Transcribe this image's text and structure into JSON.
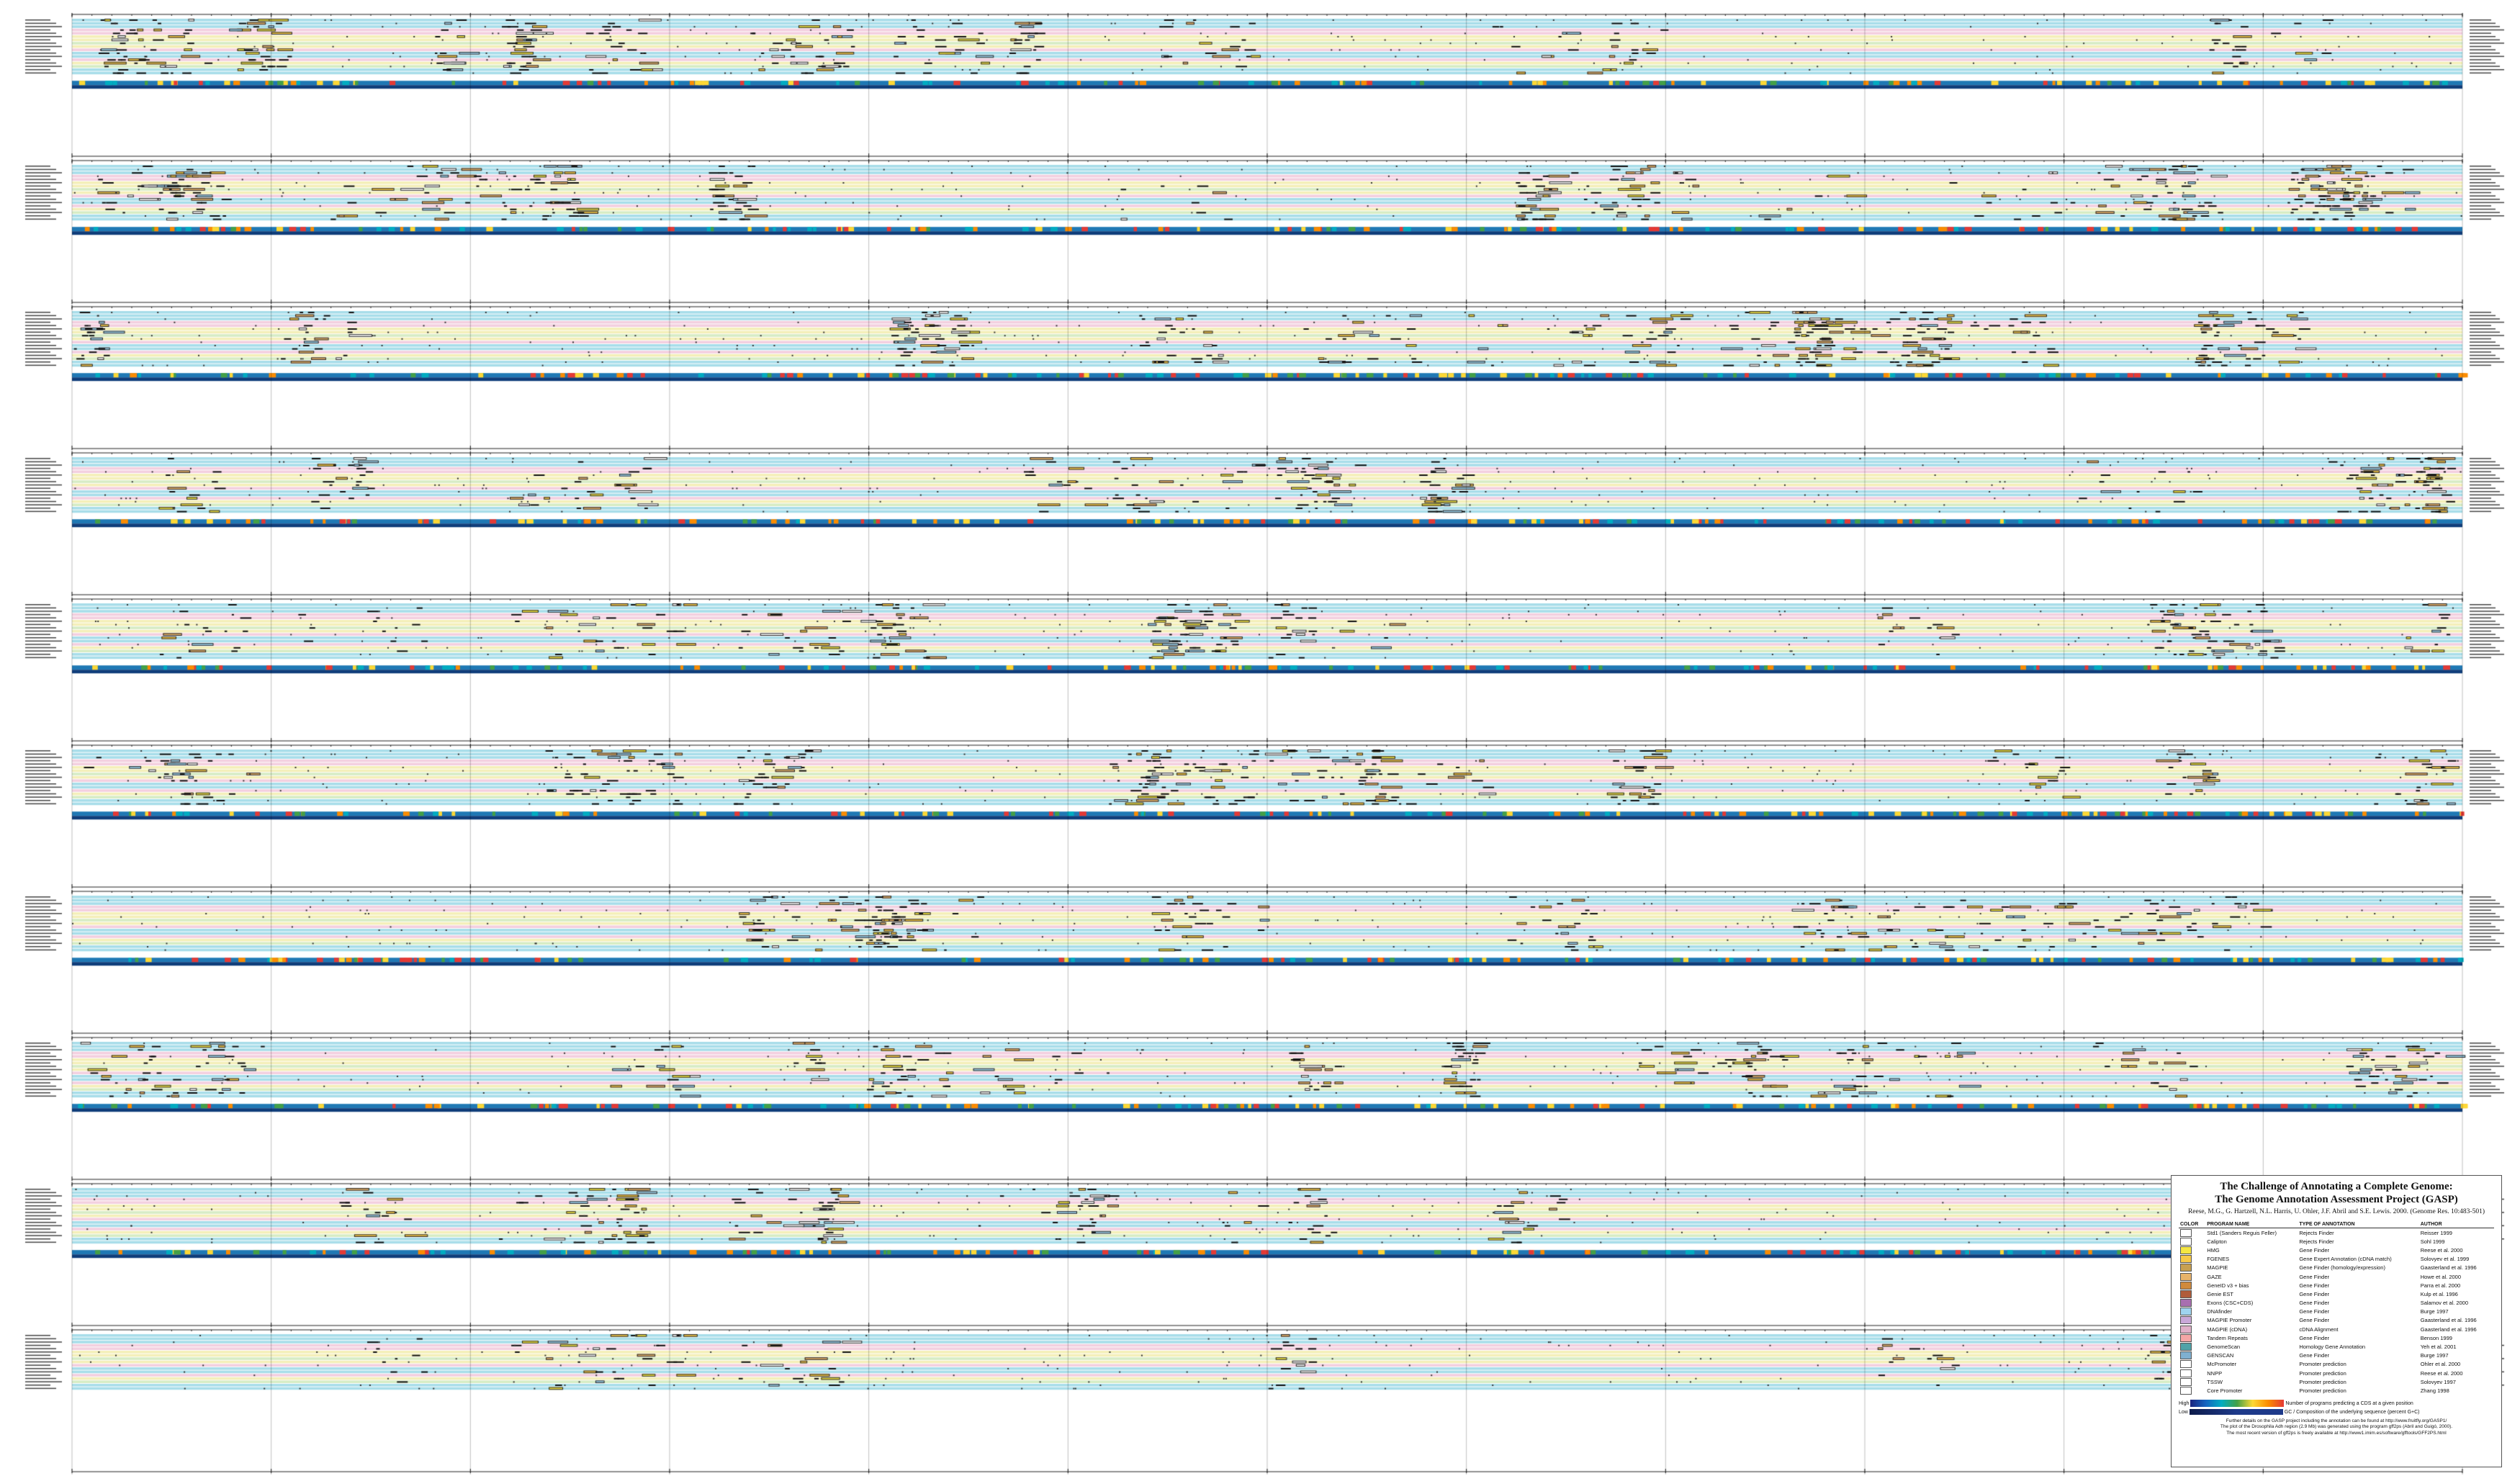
{
  "legend": {
    "title_line1": "The Challenge of Annotating a Complete Genome:",
    "title_line2": "The Genome Annotation Assessment Project (GASP)",
    "citation": "Reese, M.G., G. Hartzell, N.L. Harris, U. Ohler, J.F. Abril and S.E. Lewis. 2000. (Genome Res. 10:483-501)",
    "headers": [
      "COLOR",
      "PROGRAM NAME",
      "TYPE OF ANNOTATION",
      "AUTHOR"
    ],
    "rows": [
      {
        "color": "#ffffff",
        "program": "Std1 (Sanders Reguis Feller)",
        "type": "Rejects Finder",
        "author": "Reisser 1999"
      },
      {
        "color": "#ffffff",
        "program": "Calipton",
        "type": "Rejects Finder",
        "author": "Sohl 1999"
      },
      {
        "color": "#f5e642",
        "program": "HMG",
        "type": "Gene Finder",
        "author": "Reese et al. 2000"
      },
      {
        "color": "#f7c948",
        "program": "FGENES",
        "type": "Gene Expert Annotation (cDNA match)",
        "author": "Solovyev et al. 1999"
      },
      {
        "color": "#c8a050",
        "program": "MAGPIE",
        "type": "Gene Finder (homology/expression)",
        "author": "Gaasterland et al. 1996"
      },
      {
        "color": "#e8b36a",
        "program": "GAZE",
        "type": "Gene Finder",
        "author": "Howe et al. 2000"
      },
      {
        "color": "#d08a3c",
        "program": "GeneID v3 + bias",
        "type": "Gene Finder",
        "author": "Parra et al. 2000"
      },
      {
        "color": "#b05c3a",
        "program": "Genie EST",
        "type": "Gene Finder",
        "author": "Kulp et al. 1996"
      },
      {
        "color": "#a86fb0",
        "program": "Exons (CSC+CDS)",
        "type": "Gene Finder",
        "author": "Salamov et al. 2000"
      },
      {
        "color": "#9fd4ef",
        "program": "DNAfinder",
        "type": "Gene Finder",
        "author": "Burge 1997"
      },
      {
        "color": "#c9a8d8",
        "program": "MAGPIE Promoter",
        "type": "Gene Finder",
        "author": "Gaasterland et al. 1996"
      },
      {
        "color": "#e0b0c8",
        "program": "MAGPIE (cDNA)",
        "type": "cDNA Alignment",
        "author": "Gaasterland et al. 1996"
      },
      {
        "color": "#f3a6a6",
        "program": "Tandem Repeats",
        "type": "Gene Finder",
        "author": "Benson 1999"
      },
      {
        "color": "#4fa3a8",
        "program": "GenomeScan",
        "type": "Homology Gene Annotation",
        "author": "Yeh et al. 2001"
      },
      {
        "color": "#7fb0d0",
        "program": "GENSCAN",
        "type": "Gene Finder",
        "author": "Burge 1997"
      },
      {
        "color": "#ffffff",
        "program": "McPromoter",
        "type": "Promoter prediction",
        "author": "Ohler et al. 2000"
      },
      {
        "color": "#ffffff",
        "program": "NNPP",
        "type": "Promoter prediction",
        "author": "Reese et al. 2000"
      },
      {
        "color": "#ffffff",
        "program": "TSSW",
        "type": "Promoter prediction",
        "author": "Solovyev 1997"
      },
      {
        "color": "#ffffff",
        "program": "Core Promoter",
        "type": "Promoter prediction",
        "author": "Zhang 1998"
      }
    ],
    "scale_high": "High",
    "scale_low": "Low",
    "scale_high_text": "Number of programs predicting a CDS at a given position",
    "scale_low_text": "GC / Composition of the underlying sequence (percent G+C)",
    "footnote_line1": "Further details on the GASP project including the annotation can be found at http://www.fruitfly.org/GASP1/",
    "footnote_line2": "The plot of the Drosophila Adh region (2.9 Mb) was generated using the program gff2ps (Abril and Guigó, 2000).",
    "footnote_line3": "The most recent version of gff2ps is freely available at http://www1.imim.es/software/gfftools/GFF2PS.html"
  },
  "colors": {
    "track_blue": "#a7dde9",
    "track_pink": "#f3cfdf",
    "track_yellow": "#f4efb8",
    "track_green": "#d6ecc4",
    "band_dark": "#0f3d7a",
    "band_mid": "#1f78b4",
    "frame": "#222222"
  }
}
